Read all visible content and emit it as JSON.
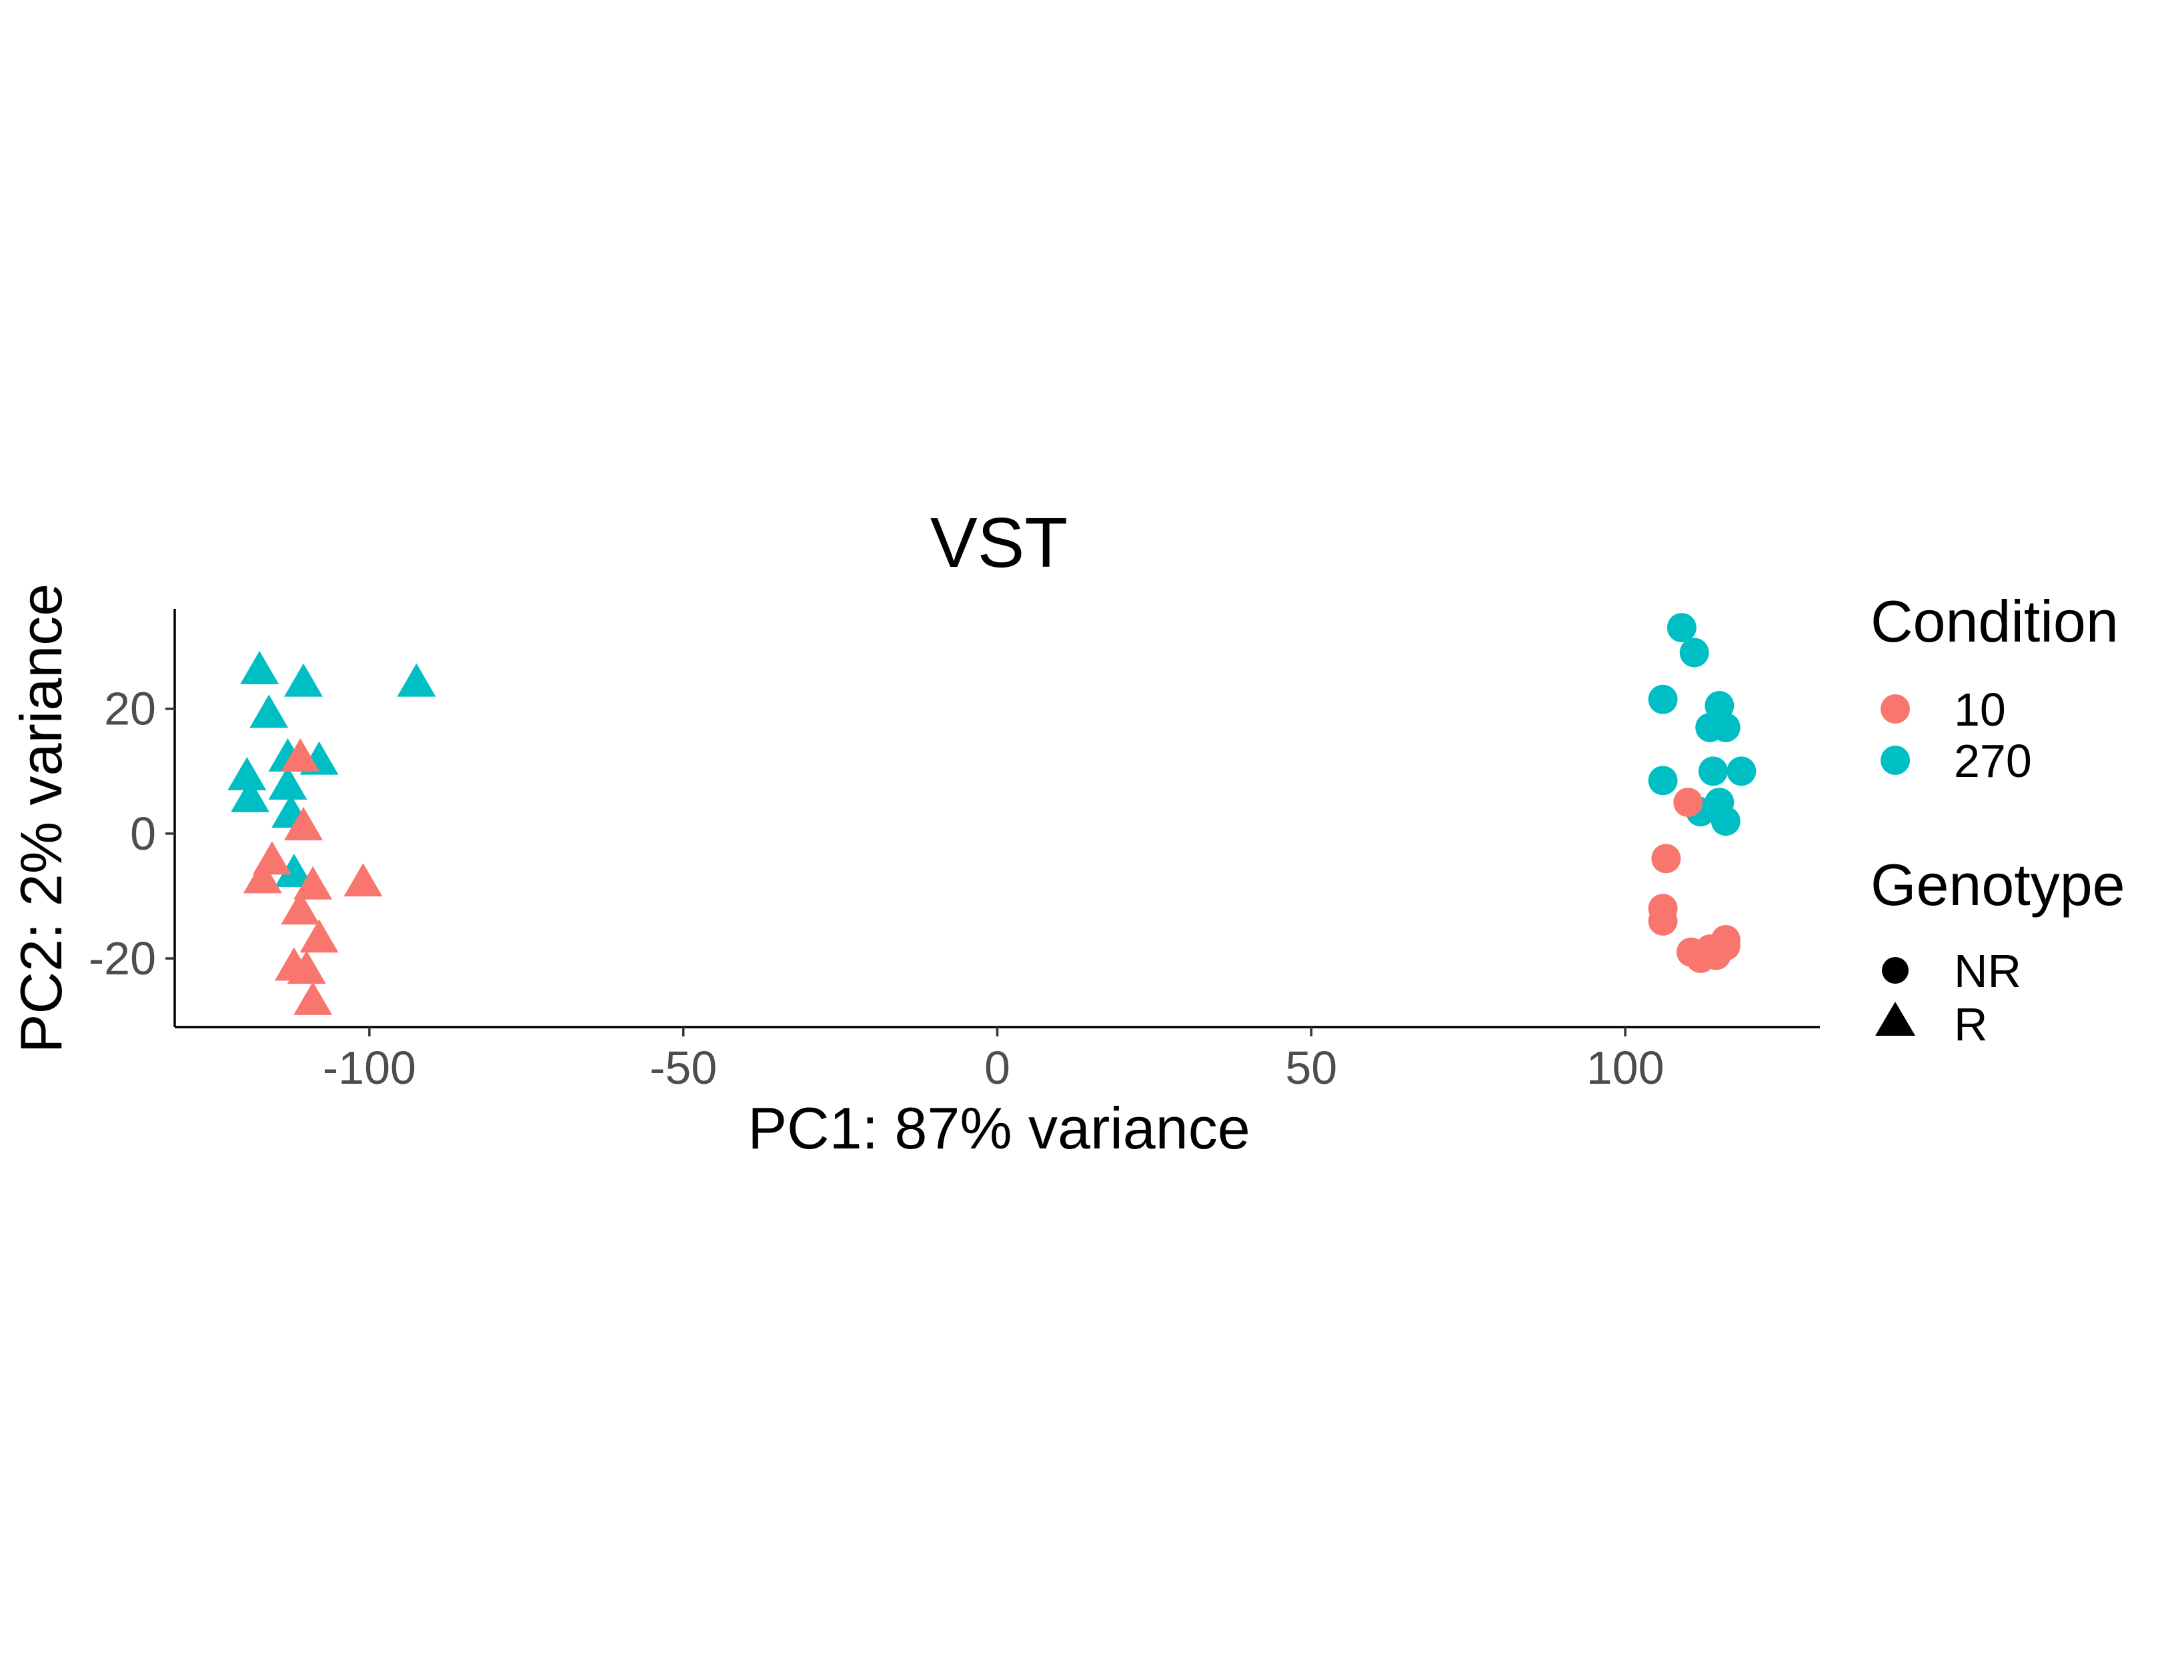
{
  "chart_data": {
    "type": "scatter",
    "title": "VST",
    "xlabel": "PC1: 87% variance",
    "ylabel": "PC2: 2% variance",
    "xlim": [
      -131,
      131
    ],
    "ylim": [
      -31,
      36
    ],
    "x_ticks": [
      -100,
      -50,
      0,
      50,
      100
    ],
    "x_tick_labels": [
      "-100",
      "-50",
      "0",
      "50",
      "100"
    ],
    "y_ticks": [
      -20,
      0,
      20
    ],
    "y_tick_labels": [
      "-20",
      "0",
      "20"
    ],
    "grid": false,
    "legend": {
      "placement": "right",
      "condition": {
        "title": "Condition",
        "items": [
          {
            "label": "10",
            "color": "#F8766D"
          },
          {
            "label": "270",
            "color": "#00BFC4"
          }
        ]
      },
      "genotype": {
        "title": "Genotype",
        "items": [
          {
            "label": "NR",
            "shape": "circle"
          },
          {
            "label": "R",
            "shape": "triangle"
          }
        ]
      }
    },
    "series": [
      {
        "condition": "270",
        "genotype": "R",
        "color": "#00BFC4",
        "shape": "triangle",
        "points": [
          [
            -117.5,
            26.5
          ],
          [
            -110.5,
            24.5
          ],
          [
            -92.5,
            24.5
          ],
          [
            -116,
            19.5
          ],
          [
            -113,
            12.5
          ],
          [
            -108,
            12
          ],
          [
            -119.5,
            9.5
          ],
          [
            -113,
            8
          ],
          [
            -119,
            6
          ],
          [
            -112.5,
            3.5
          ],
          [
            -112,
            -6
          ]
        ]
      },
      {
        "condition": "10",
        "genotype": "R",
        "color": "#F8766D",
        "shape": "triangle",
        "points": [
          [
            -111,
            12.5
          ],
          [
            -110.5,
            1.5
          ],
          [
            -115.5,
            -4
          ],
          [
            -117,
            -7
          ],
          [
            -109,
            -8
          ],
          [
            -101,
            -7.5
          ],
          [
            -111,
            -12
          ],
          [
            -108,
            -16.5
          ],
          [
            -112,
            -21
          ],
          [
            -110,
            -21.5
          ],
          [
            -109,
            -26.5
          ]
        ]
      },
      {
        "condition": "270",
        "genotype": "NR",
        "color": "#00BFC4",
        "shape": "circle",
        "points": [
          [
            109,
            33
          ],
          [
            111,
            29
          ],
          [
            106,
            21.5
          ],
          [
            115,
            20.5
          ],
          [
            113.5,
            17
          ],
          [
            116,
            17
          ],
          [
            114,
            10
          ],
          [
            118.5,
            10
          ],
          [
            106,
            8.5
          ],
          [
            115,
            5
          ],
          [
            112,
            3.5
          ],
          [
            116,
            2
          ]
        ]
      },
      {
        "condition": "10",
        "genotype": "NR",
        "color": "#F8766D",
        "shape": "circle",
        "points": [
          [
            110,
            5
          ],
          [
            106.5,
            -4
          ],
          [
            106,
            -12
          ],
          [
            106,
            -14
          ],
          [
            110.5,
            -19
          ],
          [
            112,
            -20
          ],
          [
            113.5,
            -18.5
          ],
          [
            114.5,
            -19.5
          ],
          [
            116,
            -17
          ],
          [
            116,
            -18
          ]
        ]
      }
    ]
  }
}
